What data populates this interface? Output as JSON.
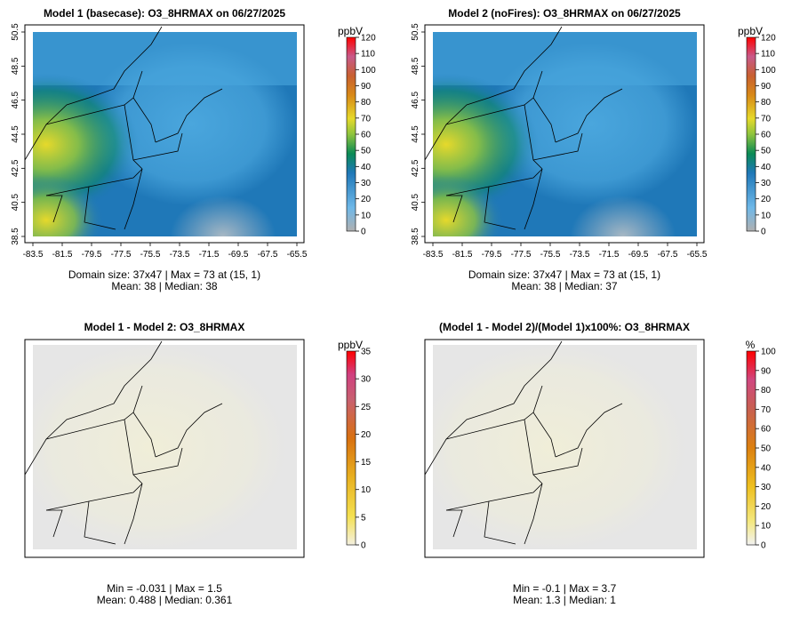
{
  "panels": [
    {
      "title": "Model 1 (basecase): O3_8HRMAX on 06/27/2025",
      "units": "ppbV",
      "colorbar_ticks": [
        "0",
        "10",
        "20",
        "30",
        "40",
        "50",
        "60",
        "70",
        "80",
        "90",
        "100",
        "110",
        "120"
      ],
      "x_ticks": [
        "-83.5",
        "-81.5",
        "-79.5",
        "-77.5",
        "-75.5",
        "-73.5",
        "-71.5",
        "-69.5",
        "-67.5",
        "-65.5"
      ],
      "y_ticks": [
        "38.5",
        "40.5",
        "42.5",
        "44.5",
        "46.5",
        "48.5",
        "50.5"
      ],
      "stats_line1": "Domain size: 37x47 | Max = 73 at (15, 1)",
      "stats_line2": "Mean: 38 |  Median: 38"
    },
    {
      "title": "Model 2 (noFires): O3_8HRMAX on 06/27/2025",
      "units": "ppbV",
      "colorbar_ticks": [
        "0",
        "10",
        "20",
        "30",
        "40",
        "50",
        "60",
        "70",
        "80",
        "90",
        "100",
        "110",
        "120"
      ],
      "x_ticks": [
        "-83.5",
        "-81.5",
        "-79.5",
        "-77.5",
        "-75.5",
        "-73.5",
        "-71.5",
        "-69.5",
        "-67.5",
        "-65.5"
      ],
      "y_ticks": [
        "38.5",
        "40.5",
        "42.5",
        "44.5",
        "46.5",
        "48.5",
        "50.5"
      ],
      "stats_line1": "Domain size: 37x47 | Max = 73 at (15, 1)",
      "stats_line2": "Mean: 38 |  Median: 37"
    },
    {
      "title": "Model 1 - Model 2: O3_8HRMAX",
      "units": "ppbV",
      "colorbar_ticks": [
        "0",
        "5",
        "10",
        "15",
        "20",
        "25",
        "30",
        "35"
      ],
      "stats_line1": "Min = -0.031 | Max = 1.5",
      "stats_line2": "Mean: 0.488 |  Median: 0.361"
    },
    {
      "title": "(Model 1 - Model 2)/(Model 1)x100%: O3_8HRMAX",
      "units": "%",
      "colorbar_ticks": [
        "0",
        "10",
        "20",
        "30",
        "40",
        "50",
        "60",
        "70",
        "80",
        "90",
        "100"
      ],
      "stats_line1": "Min = -0.1 | Max = 3.7",
      "stats_line2": "Mean: 1.3 |  Median: 1"
    }
  ],
  "colors": {
    "ozone_scale": [
      "#b5b5b5",
      "#4aa6dd",
      "#1f78b8",
      "#0a8a55",
      "#8fc43e",
      "#e6d92b",
      "#e0a020",
      "#d06010",
      "#c85a8a",
      "#e02020",
      "#ff0000"
    ],
    "diff_scale": [
      "#f0f0d8",
      "#f4e870",
      "#f0c020",
      "#e09010",
      "#d06010",
      "#c05a70",
      "#d04080",
      "#ff0000"
    ],
    "pct_scale": [
      "#f0f0f0",
      "#f4ec98",
      "#f0c828",
      "#e8a018",
      "#d87010",
      "#c86040",
      "#c85a80",
      "#d84070",
      "#e02040",
      "#f01020",
      "#ff0000"
    ]
  }
}
